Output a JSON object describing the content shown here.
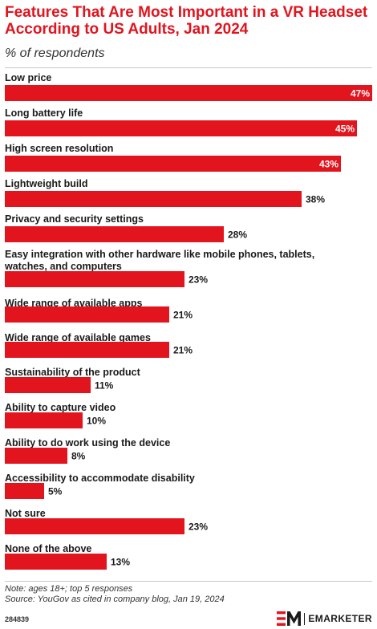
{
  "header": {
    "title": "Features That Are Most Important in a VR Headset According to US Adults, Jan 2024",
    "subtitle": "% of respondents"
  },
  "chart_data": {
    "type": "bar",
    "orientation": "horizontal",
    "title": "Features That Are Most Important in a VR Headset According to US Adults, Jan 2024",
    "subtitle": "% of respondents",
    "unit": "%",
    "xlim": [
      0,
      47
    ],
    "grid": false,
    "legend": "none",
    "bar_color": "#e2141e",
    "categories": [
      "Low price",
      "Long battery life",
      "High screen resolution",
      "Lightweight build",
      "Privacy and security settings",
      "Easy integration with other hardware like mobile phones, tablets, watches, and computers",
      "Wide range of available apps",
      "Wide range of available games",
      "Sustainability of the product",
      "Ability to capture video",
      "Ability to do work using the device",
      "Accessibility to accommodate disability",
      "Not sure",
      "None of the above"
    ],
    "values": [
      47,
      45,
      43,
      38,
      28,
      23,
      21,
      21,
      11,
      10,
      8,
      5,
      23,
      13
    ],
    "value_labels": [
      "47%",
      "45%",
      "43%",
      "38%",
      "28%",
      "23%",
      "21%",
      "21%",
      "11%",
      "10%",
      "8%",
      "5%",
      "23%",
      "13%"
    ]
  },
  "notes": {
    "note": "Note: ages 18+; top 5 responses",
    "source": "Source: YouGov as cited in company blog, Jan 19, 2024"
  },
  "footer": {
    "chart_id": "284839",
    "brand": "EMARKETER",
    "brand_color": "#e2141e"
  }
}
